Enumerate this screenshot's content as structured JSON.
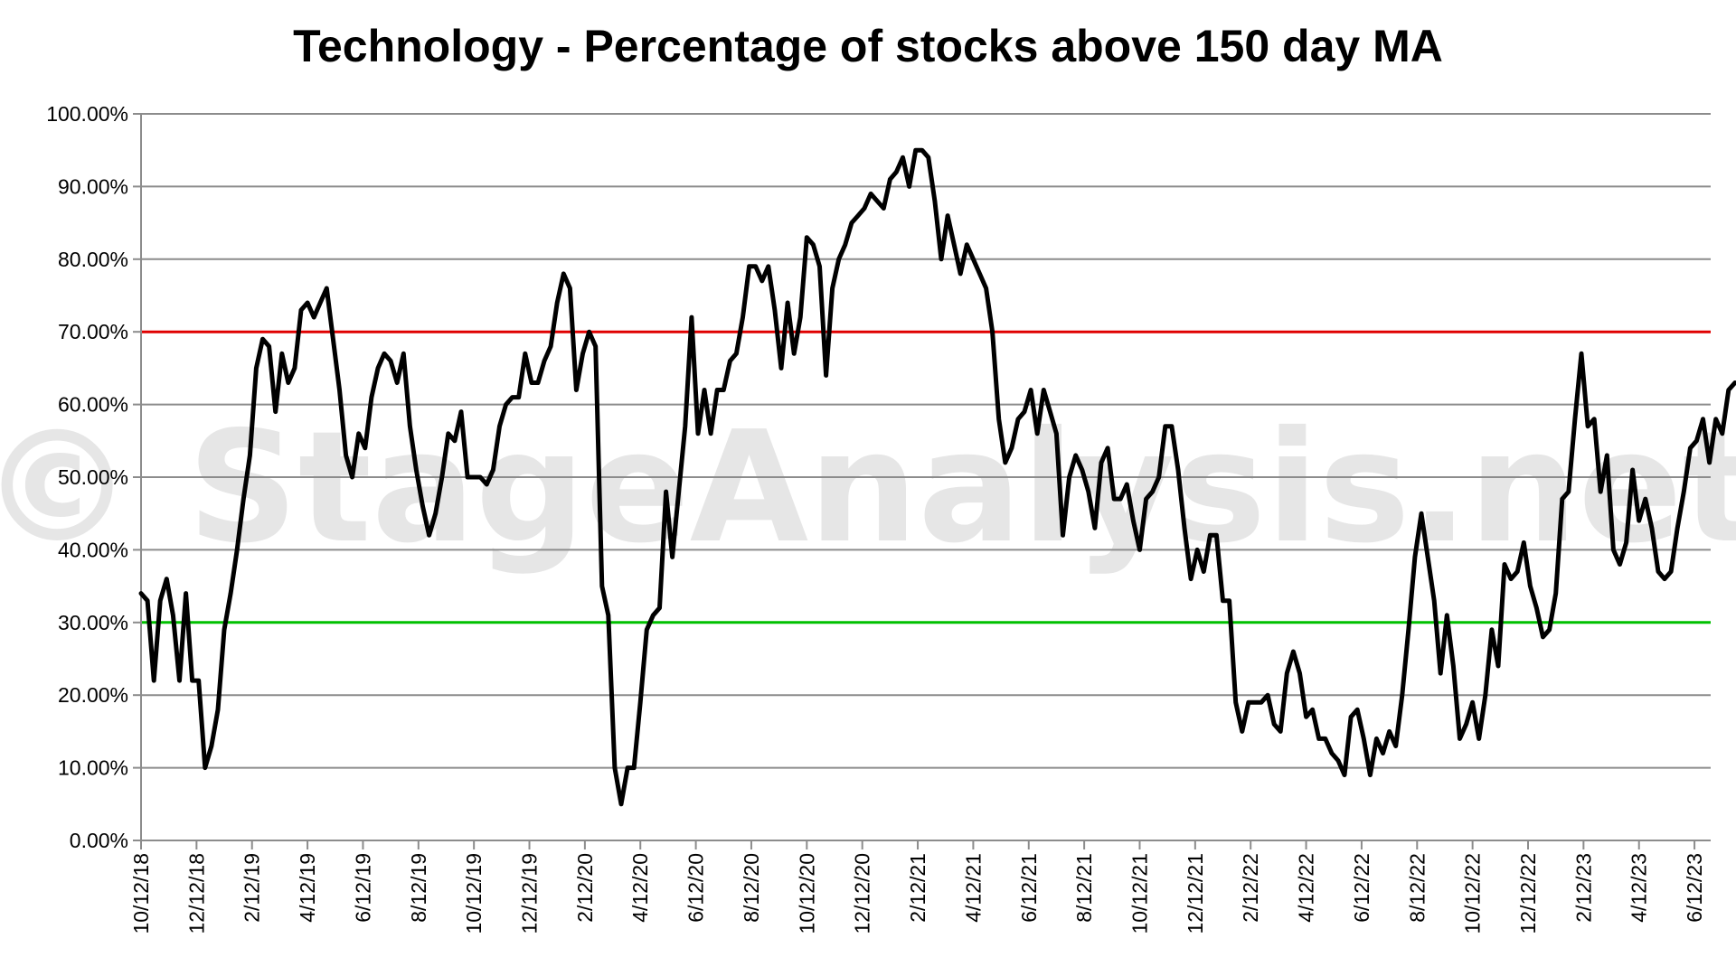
{
  "chart_data": {
    "type": "line",
    "title": "Technology - Percentage of stocks above 150 day MA",
    "watermark": "© StageAnalysis.net",
    "y_ticks": [
      "0.00%",
      "10.00%",
      "20.00%",
      "30.00%",
      "40.00%",
      "50.00%",
      "60.00%",
      "70.00%",
      "80.00%",
      "90.00%",
      "100.00%"
    ],
    "x_ticks": [
      "10/12/18",
      "12/12/18",
      "2/12/19",
      "4/12/19",
      "6/12/19",
      "8/12/19",
      "10/12/19",
      "12/12/19",
      "2/12/20",
      "4/12/20",
      "6/12/20",
      "8/12/20",
      "10/12/20",
      "12/12/20",
      "2/12/21",
      "4/12/21",
      "6/12/21",
      "8/12/21",
      "10/12/21",
      "12/12/21",
      "2/12/22",
      "4/12/22",
      "6/12/22",
      "8/12/22",
      "10/12/22",
      "12/12/22",
      "2/12/23",
      "4/12/23",
      "6/12/23"
    ],
    "ylim": [
      0,
      100
    ],
    "grid": true,
    "reference_lines": [
      {
        "value": 70,
        "color": "#e00000"
      },
      {
        "value": 30,
        "color": "#00c000"
      }
    ],
    "series": [
      {
        "color": "#000000",
        "x_start": "2018-10-12",
        "x_step_days": 7,
        "values": [
          34,
          33,
          22,
          33,
          36,
          31,
          22,
          34,
          22,
          22,
          10,
          13,
          18,
          29,
          34,
          40,
          47,
          53,
          65,
          69,
          68,
          59,
          67,
          63,
          65,
          73,
          74,
          72,
          74,
          76,
          69,
          62,
          53,
          50,
          56,
          54,
          61,
          65,
          67,
          66,
          63,
          67,
          57,
          51,
          46,
          42,
          45,
          50,
          56,
          55,
          59,
          50,
          50,
          50,
          49,
          51,
          57,
          60,
          61,
          61,
          67,
          63,
          63,
          66,
          68,
          74,
          78,
          76,
          62,
          67,
          70,
          68,
          35,
          31,
          10,
          5,
          10,
          10,
          19,
          29,
          31,
          32,
          48,
          39,
          48,
          57,
          72,
          56,
          62,
          56,
          62,
          62,
          66,
          67,
          72,
          79,
          79,
          77,
          79,
          73,
          65,
          74,
          67,
          72,
          83,
          82,
          79,
          64,
          76,
          80,
          82,
          85,
          86,
          87,
          89,
          88,
          87,
          91,
          92,
          94,
          90,
          95,
          95,
          94,
          88,
          80,
          86,
          82,
          78,
          82,
          80,
          78,
          76,
          70,
          58,
          52,
          54,
          58,
          59,
          62,
          56,
          62,
          59,
          56,
          42,
          50,
          53,
          51,
          48,
          43,
          52,
          54,
          47,
          47,
          49,
          44,
          40,
          47,
          48,
          50,
          57,
          57,
          51,
          43,
          36,
          40,
          37,
          42,
          42,
          33,
          33,
          19,
          15,
          19,
          19,
          19,
          20,
          16,
          15,
          23,
          26,
          23,
          17,
          18,
          14,
          14,
          12,
          11,
          9,
          17,
          18,
          14,
          9,
          14,
          12,
          15,
          13,
          20,
          29,
          39,
          45,
          39,
          33,
          23,
          31,
          24,
          14,
          16,
          19,
          14,
          20,
          29,
          24,
          38,
          36,
          37,
          41,
          35,
          32,
          28,
          29,
          34,
          47,
          48,
          58,
          67,
          57,
          58,
          48,
          53,
          40,
          38,
          41,
          51,
          44,
          47,
          43,
          37,
          36,
          37,
          43,
          48,
          54,
          55,
          58,
          52,
          58,
          56,
          62,
          63
        ]
      }
    ]
  }
}
